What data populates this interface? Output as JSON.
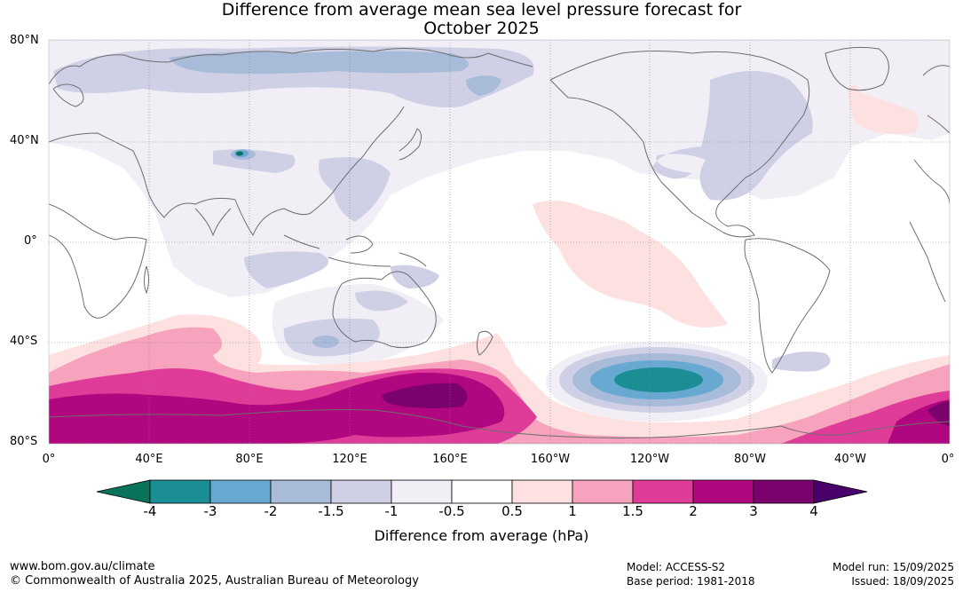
{
  "title_line1": "Difference from average mean sea level pressure forecast for",
  "title_line2": "October 2025",
  "lat_labels": [
    "80°N",
    "40°N",
    "0°",
    "40°S",
    "80°S"
  ],
  "lon_labels": [
    "0°",
    "40°E",
    "80°E",
    "120°E",
    "160°E",
    "160°W",
    "120°W",
    "80°W",
    "40°W",
    "0°"
  ],
  "colorbar": {
    "ticks": [
      "-4",
      "-3",
      "-2",
      "-1.5",
      "-1",
      "-0.5",
      "0.5",
      "1",
      "1.5",
      "2",
      "3",
      "4"
    ],
    "colors": [
      "#1a8e94",
      "#68a9d2",
      "#a8bbd9",
      "#cfd0e6",
      "#f1eef6",
      "#ffffff",
      "#fde0e0",
      "#f7a3bd",
      "#de3c98",
      "#b0067f",
      "#7a016e"
    ],
    "extend_low_color": "#08735a",
    "extend_high_color": "#49006a",
    "label": "Difference from average (hPa)"
  },
  "footer": {
    "website": "www.bom.gov.au/climate",
    "copyright": "© Commonwealth of Australia 2025, Australian Bureau of Meteorology",
    "model": "Model: ACCESS-S2",
    "base_period": "Base period: 1981-2018",
    "model_run": "Model run: 15/09/2025",
    "issued": "Issued: 18/09/2025"
  }
}
